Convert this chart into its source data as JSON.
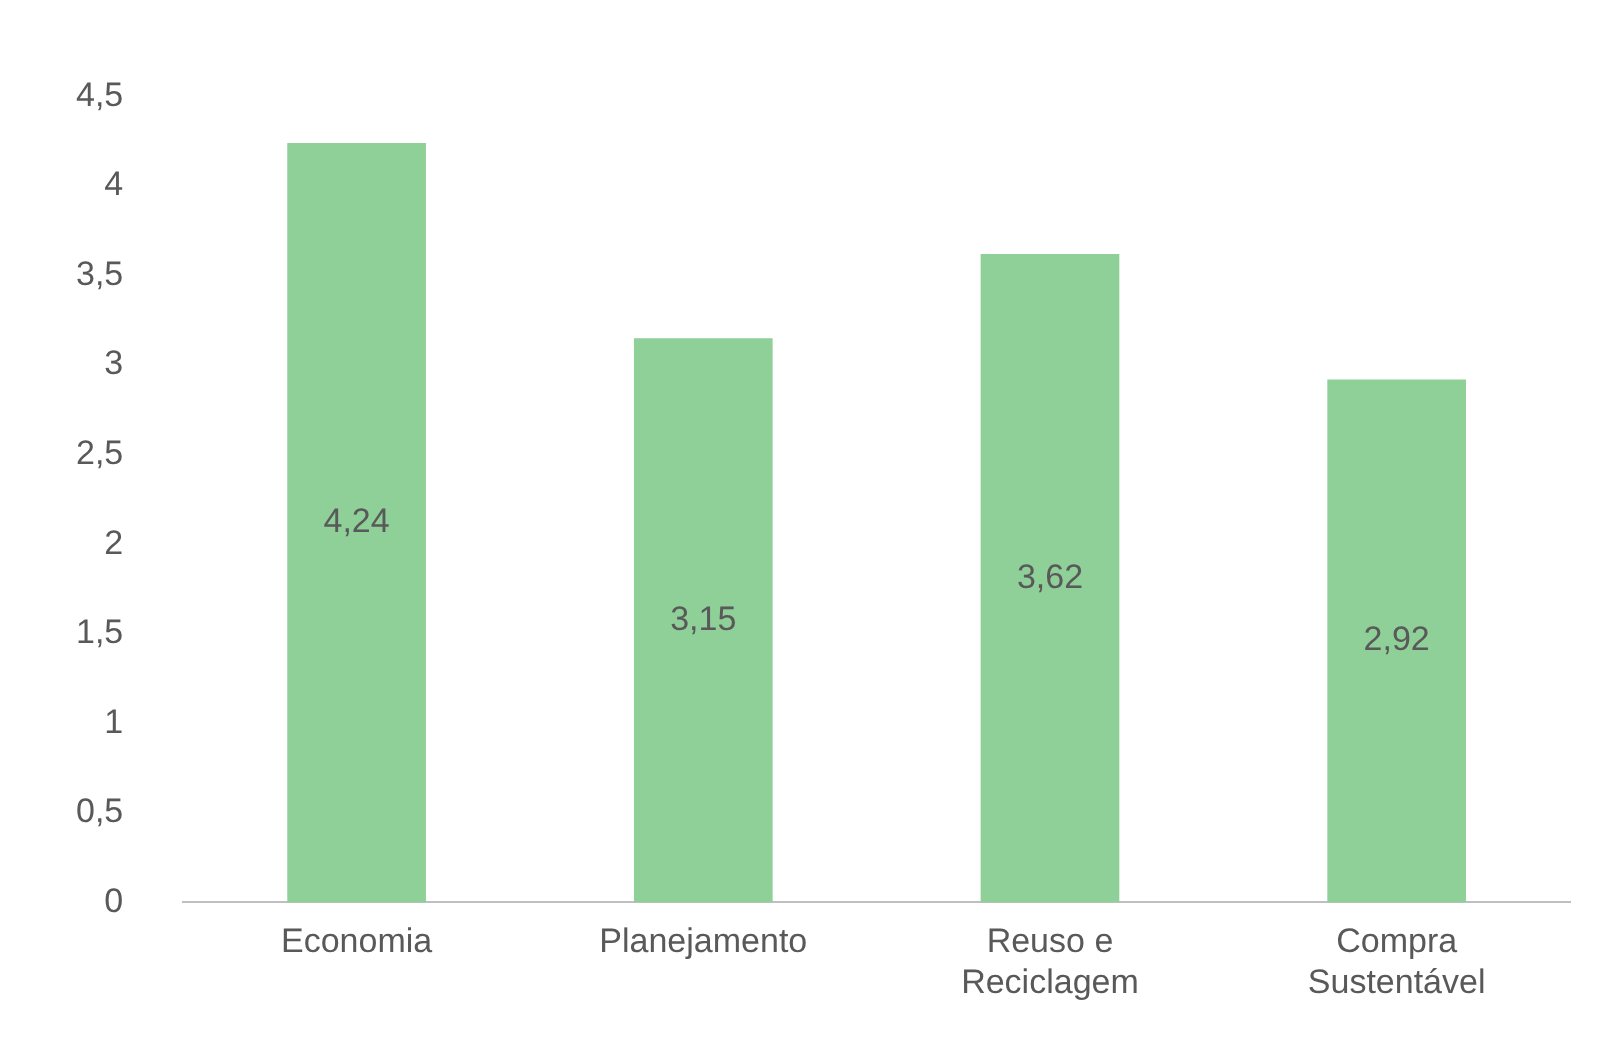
{
  "chart_data": {
    "type": "bar",
    "categories": [
      "Economia",
      "Planejamento",
      "Reuso e Reciclagem",
      "Compra Sustentável"
    ],
    "values": [
      4.24,
      3.15,
      3.62,
      2.92
    ],
    "value_labels": [
      "4,24",
      "3,15",
      "3,62",
      "2,92"
    ],
    "color": "#8fcf98",
    "ylim": [
      0,
      4.5
    ],
    "yticks": [
      {
        "value": 0,
        "label": "0"
      },
      {
        "value": 0.5,
        "label": "0,5"
      },
      {
        "value": 1,
        "label": "1"
      },
      {
        "value": 1.5,
        "label": "1,5"
      },
      {
        "value": 2,
        "label": "2"
      },
      {
        "value": 2.5,
        "label": "2,5"
      },
      {
        "value": 3,
        "label": "3"
      },
      {
        "value": 3.5,
        "label": "3,5"
      },
      {
        "value": 4,
        "label": "4"
      },
      {
        "value": 4.5,
        "label": "4,5"
      }
    ],
    "grid": false,
    "legend": false
  }
}
